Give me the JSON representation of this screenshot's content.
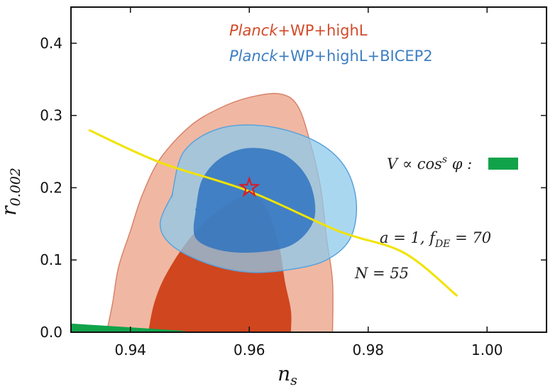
{
  "chart_data": {
    "type": "contour",
    "xlabel": "n",
    "xlabel_sub": "s",
    "ylabel": "r",
    "ylabel_sub": "0.002",
    "xlim": [
      0.93,
      1.01
    ],
    "ylim": [
      0.0,
      0.45
    ],
    "x_ticks": [
      0.94,
      0.96,
      0.98,
      1.0
    ],
    "x_tick_labels": [
      "0.94",
      "0.96",
      "0.98",
      "1.00"
    ],
    "y_ticks": [
      0.0,
      0.1,
      0.2,
      0.3,
      0.4
    ],
    "y_tick_labels": [
      "0.0",
      "0.1",
      "0.2",
      "0.3",
      "0.4"
    ],
    "legend": [
      {
        "italic": "Planck",
        "rest": "+WP+highL",
        "color": "#d14b2a"
      },
      {
        "italic": "Planck",
        "rest": "+WP+highL+BICEP2",
        "color": "#3d7ec2"
      }
    ],
    "colors": {
      "planck_outer": "#f0b8a3",
      "planck_inner": "#d0461f",
      "bicep_outer": "#8ecaeb",
      "bicep_inner": "#2f73bf",
      "model_line": "#f1e300",
      "model_band": "#10a34a",
      "star": "#e0171f"
    },
    "contours": [
      {
        "name": "Planck+WP+highL 95%",
        "points": [
          [
            0.936,
            0.0
          ],
          [
            0.937,
            0.04
          ],
          [
            0.938,
            0.09
          ],
          [
            0.94,
            0.14
          ],
          [
            0.942,
            0.19
          ],
          [
            0.945,
            0.24
          ],
          [
            0.95,
            0.285
          ],
          [
            0.955,
            0.31
          ],
          [
            0.96,
            0.325
          ],
          [
            0.965,
            0.33
          ],
          [
            0.968,
            0.315
          ],
          [
            0.97,
            0.27
          ],
          [
            0.972,
            0.2
          ],
          [
            0.973,
            0.13
          ],
          [
            0.974,
            0.07
          ],
          [
            0.974,
            0.0
          ]
        ]
      },
      {
        "name": "Planck+WP+highL 68%",
        "points": [
          [
            0.943,
            0.0
          ],
          [
            0.944,
            0.04
          ],
          [
            0.946,
            0.08
          ],
          [
            0.95,
            0.13
          ],
          [
            0.955,
            0.17
          ],
          [
            0.96,
            0.19
          ],
          [
            0.963,
            0.17
          ],
          [
            0.965,
            0.12
          ],
          [
            0.966,
            0.07
          ],
          [
            0.967,
            0.03
          ],
          [
            0.967,
            0.0
          ]
        ]
      },
      {
        "name": "Planck+WP+highL+BICEP2 95%",
        "points": [
          [
            0.947,
            0.19
          ],
          [
            0.945,
            0.15
          ],
          [
            0.947,
            0.12
          ],
          [
            0.953,
            0.095
          ],
          [
            0.96,
            0.083
          ],
          [
            0.967,
            0.087
          ],
          [
            0.973,
            0.1
          ],
          [
            0.977,
            0.13
          ],
          [
            0.978,
            0.18
          ],
          [
            0.976,
            0.23
          ],
          [
            0.971,
            0.265
          ],
          [
            0.963,
            0.285
          ],
          [
            0.955,
            0.282
          ],
          [
            0.949,
            0.25
          ],
          [
            0.947,
            0.19
          ]
        ]
      },
      {
        "name": "Planck+WP+highL+BICEP2 68%",
        "points": [
          [
            0.951,
            0.17
          ],
          [
            0.951,
            0.13
          ],
          [
            0.956,
            0.112
          ],
          [
            0.963,
            0.112
          ],
          [
            0.968,
            0.125
          ],
          [
            0.971,
            0.16
          ],
          [
            0.97,
            0.21
          ],
          [
            0.966,
            0.245
          ],
          [
            0.96,
            0.255
          ],
          [
            0.955,
            0.24
          ],
          [
            0.952,
            0.21
          ],
          [
            0.951,
            0.17
          ]
        ]
      }
    ],
    "model_line": {
      "name": "V ∝ cos^s φ, a = 1, f_DE = 70",
      "points": [
        [
          0.933,
          0.28
        ],
        [
          0.945,
          0.235
        ],
        [
          0.96,
          0.195
        ],
        [
          0.975,
          0.14
        ],
        [
          0.986,
          0.11
        ],
        [
          0.995,
          0.05
        ]
      ]
    },
    "model_band": {
      "name": "V ∝ cos^s φ green band",
      "points": [
        [
          0.93,
          0.012
        ],
        [
          0.949,
          0.002
        ],
        [
          0.949,
          0.0
        ],
        [
          0.93,
          0.0
        ]
      ]
    },
    "marker": {
      "name": "star",
      "x": 0.96,
      "y": 0.2
    },
    "annotations": {
      "potential_label": "V ∝ cos",
      "potential_sup": "s",
      "potential_tail": " φ :",
      "params_label": "a = 1,  f",
      "params_sub": "DE",
      "params_tail": " = 70",
      "efolds_label": "N = 55"
    }
  }
}
